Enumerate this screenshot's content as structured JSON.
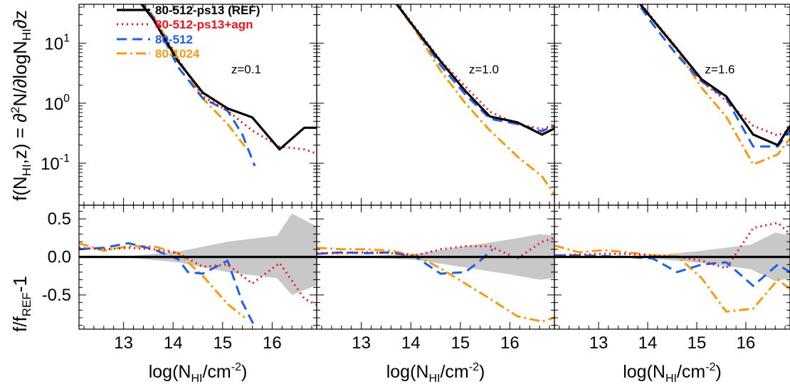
{
  "chart_data": {
    "type": "line",
    "xlabel": "log(N_HI/cm^-2)",
    "ylabel_top": "f(N_HI,z) = ∂²N/∂logN_HI∂z",
    "ylabel_bottom": "f/f_REF-1",
    "xlim": [
      12.1,
      16.9
    ],
    "xticks": [
      13,
      14,
      15,
      16
    ],
    "ylim_top_log10": [
      -1.7,
      1.65
    ],
    "ylim_bottom": [
      -0.95,
      0.68
    ],
    "yticks_bottom": [
      0.5,
      0.0,
      -0.5
    ],
    "legend_position": "top-left of first panel",
    "grey_band_label": "",
    "colors": {
      "ref": "#000000",
      "agn": "#e8141c",
      "s512": "#1e5fe8",
      "s1024": "#f39c12",
      "band": "#c8c8c8"
    },
    "series_names": [
      "80-512-ps13 (REF)",
      "80-512-ps13+agn",
      "80-512",
      "80-1024"
    ],
    "panels": [
      {
        "redshift_label": "z=0.1",
        "top": [
          {
            "name": "80-512-ps13 (REF)",
            "x": [
              12.1,
              12.6,
              13.1,
              13.6,
              14.1,
              14.6,
              15.1,
              15.6,
              16.15,
              16.65,
              16.9
            ],
            "y": [
              230,
              210,
              85,
              25,
              5,
              1.5,
              0.82,
              0.58,
              0.17,
              0.39,
              0.39
            ]
          },
          {
            "name": "80-512-ps13+agn",
            "x": [
              12.1,
              12.6,
              13.1,
              13.6,
              14.1,
              14.6,
              15.1,
              15.6,
              16.15,
              16.65,
              16.9
            ],
            "y": [
              260,
              230,
              95,
              28,
              5.5,
              1.3,
              0.75,
              0.35,
              0.19,
              0.17,
              0.145
            ]
          },
          {
            "name": "80-512",
            "x": [
              12.1,
              12.6,
              13.1,
              13.6,
              14.1,
              14.6,
              15.1,
              15.4,
              15.65
            ],
            "y": [
              260,
              240,
              95,
              27,
              4,
              1.2,
              0.75,
              0.3,
              0.09
            ]
          },
          {
            "name": "80-1024",
            "x": [
              12.1,
              12.6,
              13.1,
              13.6,
              14.1,
              14.6,
              15.1,
              15.45
            ],
            "y": [
              280,
              230,
              98,
              28,
              5.5,
              1.2,
              0.45,
              0.19
            ]
          }
        ],
        "bottom": [
          {
            "name": "80-512-ps13 (REF)",
            "x": [
              12.1,
              16.9
            ],
            "y": [
              0.0,
              0.0
            ]
          },
          {
            "name": "80-512-ps13+agn",
            "x": [
              12.1,
              12.6,
              13.1,
              13.6,
              14.1,
              14.6,
              15.1,
              15.6,
              16.15,
              16.65,
              16.9
            ],
            "y": [
              0.12,
              0.1,
              0.12,
              0.1,
              0.05,
              -0.13,
              -0.1,
              -0.35,
              -0.08,
              -0.55,
              -0.63
            ]
          },
          {
            "name": "80-512",
            "x": [
              12.1,
              12.6,
              13.1,
              13.6,
              14.1,
              14.3,
              14.6,
              15.1,
              15.4,
              15.65
            ],
            "y": [
              0.1,
              0.12,
              0.18,
              0.1,
              -0.03,
              -0.2,
              -0.22,
              -0.05,
              -0.6,
              -0.92
            ]
          },
          {
            "name": "80-1024",
            "x": [
              12.1,
              12.6,
              13.1,
              13.6,
              14.1,
              14.6,
              15.1,
              15.45
            ],
            "y": [
              0.18,
              0.08,
              0.14,
              0.14,
              0.05,
              -0.25,
              -0.62,
              -0.8
            ]
          }
        ],
        "band_upper": {
          "x": [
            12.1,
            13.1,
            14.1,
            15.1,
            16.1,
            16.4,
            16.9
          ],
          "y": [
            0.0,
            0.01,
            0.07,
            0.2,
            0.28,
            0.57,
            0.4
          ]
        },
        "band_lower": {
          "x": [
            12.1,
            13.1,
            14.1,
            15.1,
            16.1,
            16.4,
            16.9
          ],
          "y": [
            0.0,
            -0.01,
            -0.07,
            -0.2,
            -0.28,
            -0.5,
            -0.37
          ]
        }
      },
      {
        "redshift_label": "z=1.0",
        "top": [
          {
            "name": "80-512-ps13 (REF)",
            "x": [
              12.1,
              12.6,
              13.1,
              13.6,
              14.1,
              14.6,
              15.1,
              15.6,
              16.15,
              16.65,
              16.9
            ],
            "y": [
              250,
              300,
              180,
              60,
              17,
              5,
              1.6,
              0.6,
              0.48,
              0.3,
              0.38
            ]
          },
          {
            "name": "80-512-ps13+agn",
            "x": [
              12.1,
              12.6,
              13.1,
              13.6,
              14.1,
              14.6,
              15.1,
              15.6,
              16.15,
              16.65,
              16.9
            ],
            "y": [
              270,
              310,
              190,
              62,
              18,
              5.2,
              1.9,
              0.72,
              0.45,
              0.37,
              0.44
            ]
          },
          {
            "name": "80-512",
            "x": [
              12.1,
              12.6,
              13.1,
              13.6,
              14.1,
              14.6,
              15.1,
              15.6,
              16.15,
              16.65,
              16.9
            ],
            "y": [
              270,
              290,
              180,
              62,
              17,
              4.3,
              1.4,
              0.55,
              0.45,
              0.34,
              0.43
            ]
          },
          {
            "name": "80-1024",
            "x": [
              12.1,
              12.6,
              13.1,
              13.6,
              14.1,
              14.6,
              15.1,
              15.6,
              16.15,
              16.65,
              16.9
            ],
            "y": [
              290,
              310,
              180,
              60,
              16,
              3.5,
              1.0,
              0.35,
              0.13,
              0.06,
              0.03
            ]
          }
        ],
        "bottom": [
          {
            "name": "80-512-ps13 (REF)",
            "x": [
              12.1,
              16.9
            ],
            "y": [
              0.0,
              0.0
            ]
          },
          {
            "name": "80-512-ps13+agn",
            "x": [
              12.1,
              12.6,
              13.1,
              13.6,
              14.1,
              14.6,
              15.1,
              15.6,
              16.15,
              16.65,
              16.9
            ],
            "y": [
              0.05,
              0.05,
              0.06,
              0.05,
              0.02,
              0.1,
              0.14,
              0.14,
              -0.02,
              0.2,
              0.25
            ]
          },
          {
            "name": "80-512",
            "x": [
              12.1,
              12.6,
              13.1,
              13.6,
              14.1,
              14.6,
              15.1,
              15.4,
              15.65
            ],
            "y": [
              0.04,
              0.06,
              0.05,
              0.06,
              0.0,
              -0.22,
              -0.2,
              -0.05,
              0.1
            ]
          },
          {
            "name": "80-1024",
            "x": [
              12.1,
              12.6,
              13.1,
              13.6,
              14.1,
              14.6,
              15.1,
              15.6,
              16.15,
              16.65,
              16.9
            ],
            "y": [
              0.12,
              0.1,
              0.1,
              0.08,
              0.02,
              -0.15,
              -0.35,
              -0.55,
              -0.78,
              -0.85,
              -0.8
            ]
          }
        ],
        "band_upper": {
          "x": [
            12.1,
            13.1,
            14.1,
            15.1,
            16.1,
            16.6,
            16.9
          ],
          "y": [
            0.0,
            0.01,
            0.04,
            0.14,
            0.24,
            0.3,
            0.28
          ]
        },
        "band_lower": {
          "x": [
            12.1,
            13.1,
            14.1,
            15.1,
            16.1,
            16.6,
            16.9
          ],
          "y": [
            0.0,
            -0.01,
            -0.04,
            -0.14,
            -0.24,
            -0.3,
            -0.28
          ]
        }
      },
      {
        "redshift_label": "z=1.6",
        "top": [
          {
            "name": "80-512-ps13 (REF)",
            "x": [
              12.1,
              12.6,
              13.1,
              13.6,
              14.1,
              14.6,
              15.1,
              15.6,
              16.15,
              16.65,
              16.9
            ],
            "y": [
              200,
              300,
              200,
              80,
              25,
              8,
              2.5,
              1.3,
              0.3,
              0.2,
              0.42
            ]
          },
          {
            "name": "80-512-ps13+agn",
            "x": [
              12.1,
              12.6,
              13.1,
              13.6,
              14.1,
              14.6,
              15.1,
              15.6,
              16.15,
              16.65,
              16.9
            ],
            "y": [
              210,
              320,
              210,
              85,
              26,
              8.2,
              2.3,
              1.1,
              0.42,
              0.29,
              0.36
            ]
          },
          {
            "name": "80-512",
            "x": [
              12.1,
              12.6,
              13.1,
              13.6,
              14.1,
              14.6,
              15.1,
              15.6,
              16.15,
              16.65,
              16.9
            ],
            "y": [
              220,
              310,
              200,
              80,
              21,
              6.3,
              2.3,
              1.2,
              0.19,
              0.19,
              0.35
            ]
          },
          {
            "name": "80-1024",
            "x": [
              12.1,
              12.6,
              13.1,
              13.6,
              14.1,
              14.6,
              15.1,
              15.6,
              16.15,
              16.65,
              16.9
            ],
            "y": [
              230,
              340,
              210,
              85,
              25,
              7.5,
              1.8,
              0.6,
              0.095,
              0.14,
              0.26
            ]
          }
        ],
        "bottom": [
          {
            "name": "80-512-ps13 (REF)",
            "x": [
              12.1,
              16.9
            ],
            "y": [
              0.0,
              0.0
            ]
          },
          {
            "name": "80-512-ps13+agn",
            "x": [
              12.1,
              12.6,
              13.1,
              13.6,
              14.1,
              14.6,
              15.1,
              15.6,
              16.15,
              16.65,
              16.9
            ],
            "y": [
              0.02,
              0.03,
              0.04,
              0.04,
              0.02,
              0.0,
              -0.05,
              -0.15,
              0.38,
              0.45,
              0.3
            ]
          },
          {
            "name": "80-512",
            "x": [
              12.1,
              12.6,
              13.1,
              13.6,
              14.1,
              14.6,
              15.1,
              15.6,
              16.15,
              16.65,
              16.9
            ],
            "y": [
              0.02,
              0.02,
              0.01,
              0.0,
              -0.02,
              -0.2,
              -0.1,
              -0.07,
              -0.38,
              -0.1,
              -0.2
            ]
          },
          {
            "name": "80-1024",
            "x": [
              12.1,
              12.6,
              13.1,
              13.6,
              14.1,
              14.6,
              15.1,
              15.6,
              16.15,
              16.65,
              16.9
            ],
            "y": [
              0.15,
              0.06,
              0.09,
              0.06,
              0.02,
              0.01,
              -0.28,
              -0.72,
              -0.68,
              -0.3,
              -0.42
            ]
          }
        ],
        "band_upper": {
          "x": [
            12.1,
            13.1,
            14.1,
            15.1,
            16.1,
            16.6,
            16.9
          ],
          "y": [
            0.0,
            0.01,
            0.02,
            0.08,
            0.16,
            0.32,
            0.28
          ]
        },
        "band_lower": {
          "x": [
            12.1,
            13.1,
            14.1,
            15.1,
            16.1,
            16.6,
            16.9
          ],
          "y": [
            0.0,
            -0.01,
            -0.02,
            -0.08,
            -0.16,
            -0.32,
            -0.28
          ]
        }
      }
    ]
  }
}
